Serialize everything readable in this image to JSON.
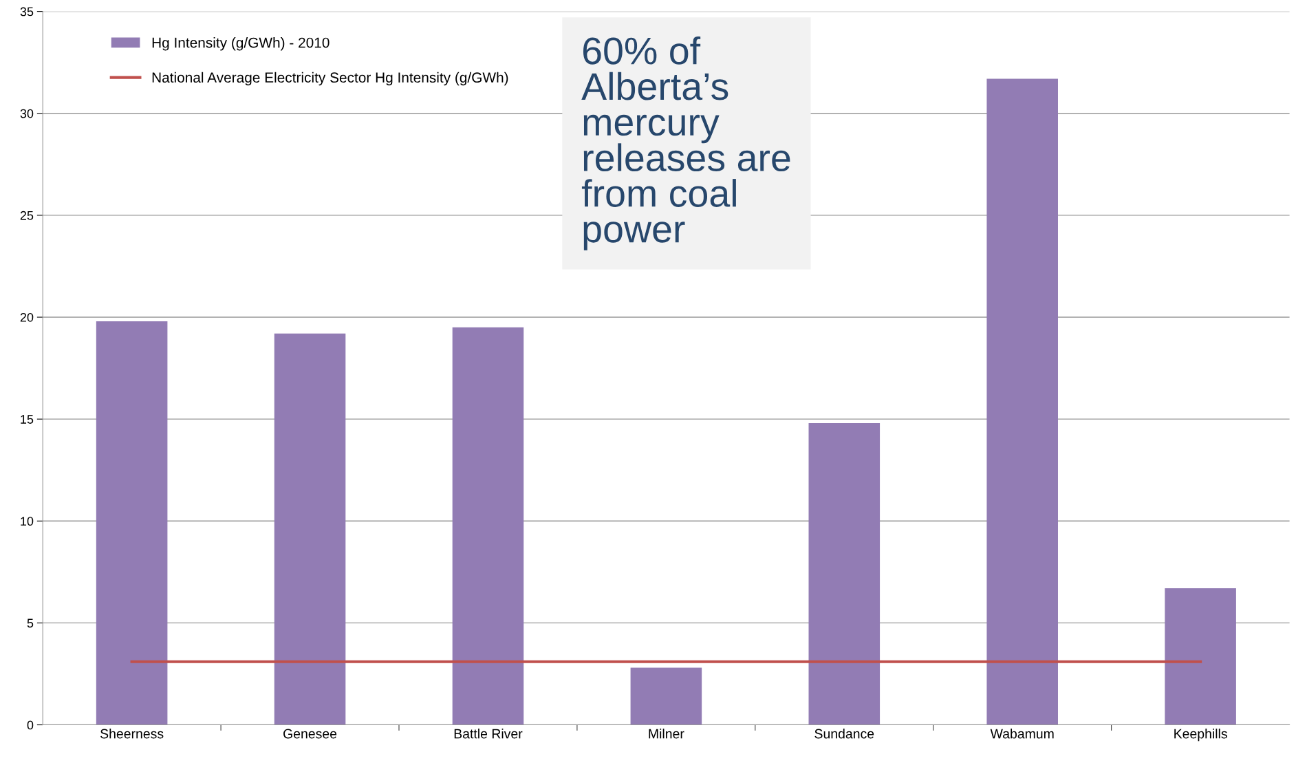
{
  "chart_data": {
    "type": "bar",
    "categories": [
      "Sheerness",
      "Genesee",
      "Battle River",
      "Milner",
      "Sundance",
      "Wabamum",
      "Keephills"
    ],
    "series": [
      {
        "name": "Hg Intensity (g/GWh) - 2010",
        "color": "#927cb4",
        "values": [
          19.8,
          19.2,
          19.5,
          2.8,
          14.8,
          31.7,
          6.7
        ]
      },
      {
        "name": "National Average Electricity Sector Hg Intensity (g/GWh)",
        "type": "line",
        "color": "#c0504d",
        "values": [
          3.1,
          3.1,
          3.1,
          3.1,
          3.1,
          3.1,
          3.1
        ]
      }
    ],
    "ylim": [
      0,
      35
    ],
    "yticks": [
      0,
      5,
      10,
      15,
      20,
      25,
      30,
      35
    ],
    "grid": "y",
    "legend": "top left",
    "annotations": [
      "60% of\nAlberta’s\nmercury\nreleases are\nfrom coal\npower"
    ]
  }
}
